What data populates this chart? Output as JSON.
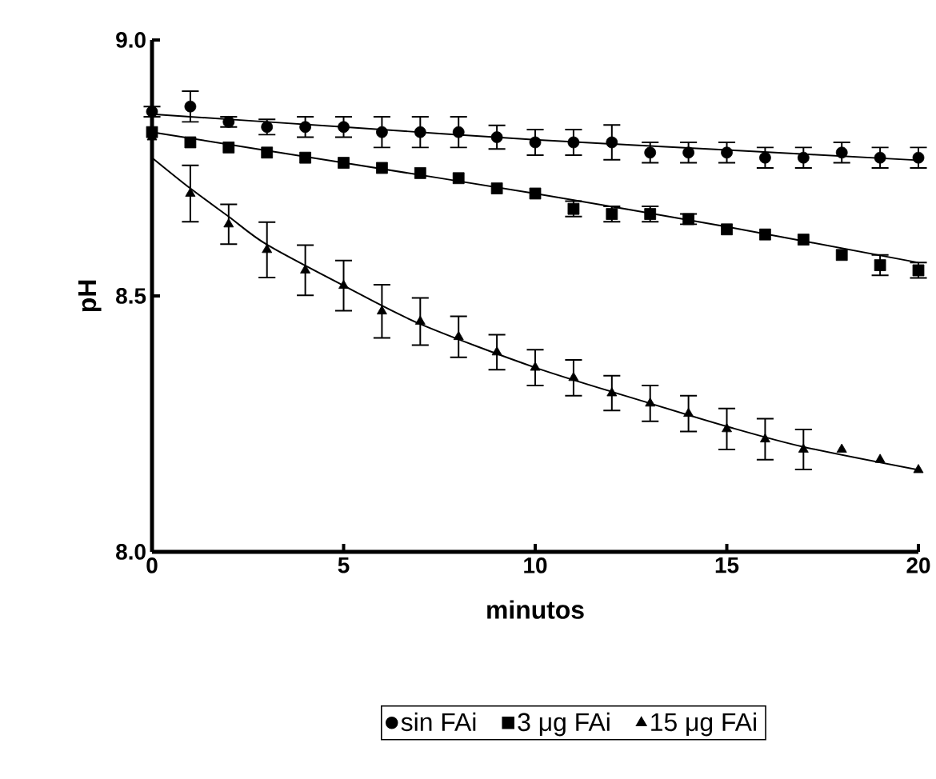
{
  "chart_data": {
    "type": "scatter",
    "xlabel": "minutos",
    "ylabel": "pH",
    "x": [
      0,
      1,
      2,
      3,
      4,
      5,
      6,
      7,
      8,
      9,
      10,
      11,
      12,
      13,
      14,
      15,
      16,
      17,
      18,
      19,
      20
    ],
    "xlim": [
      0,
      20
    ],
    "ylim": [
      8.0,
      9.0
    ],
    "xticks": [
      0,
      5,
      10,
      15,
      20
    ],
    "yticks": [
      {
        "value": 8.0,
        "label": "8.0"
      },
      {
        "value": 8.5,
        "label": "8.5"
      },
      {
        "value": 9.0,
        "label": "9.0"
      }
    ],
    "legend": "bottom",
    "grid": false,
    "series": [
      {
        "name": "sin FAi",
        "color": "#000000",
        "marker": "circle",
        "values": [
          8.86,
          8.87,
          8.84,
          8.83,
          8.83,
          8.83,
          8.82,
          8.82,
          8.82,
          8.81,
          8.8,
          8.8,
          8.8,
          8.78,
          8.78,
          8.78,
          8.77,
          8.77,
          8.78,
          8.77,
          8.77
        ],
        "errors": [
          0.01,
          0.03,
          0.01,
          0.015,
          0.02,
          0.02,
          0.03,
          0.03,
          0.03,
          0.023,
          0.025,
          0.025,
          0.034,
          0.02,
          0.02,
          0.02,
          0.02,
          0.02,
          0.02,
          0.02,
          0.02
        ]
      },
      {
        "name": "3 μg FAi",
        "color": "#000000",
        "marker": "square",
        "values": [
          8.82,
          8.8,
          8.79,
          8.78,
          8.77,
          8.76,
          8.75,
          8.74,
          8.73,
          8.71,
          8.7,
          8.67,
          8.66,
          8.66,
          8.65,
          8.63,
          8.62,
          8.61,
          8.58,
          8.56,
          8.55
        ],
        "errors": [
          null,
          null,
          null,
          null,
          null,
          null,
          null,
          null,
          null,
          null,
          null,
          0.015,
          0.015,
          0.015,
          0.01,
          null,
          null,
          null,
          null,
          0.02,
          0.015
        ]
      },
      {
        "name": "15 μg FAi",
        "color": "#000000",
        "marker": "triangle",
        "values": [
          8.81,
          8.7,
          8.64,
          8.59,
          8.55,
          8.52,
          8.47,
          8.45,
          8.42,
          8.39,
          8.36,
          8.34,
          8.31,
          8.29,
          8.27,
          8.24,
          8.22,
          8.2,
          8.2,
          8.18,
          8.16
        ],
        "errors": [
          null,
          0.055,
          0.039,
          0.054,
          0.049,
          0.049,
          0.052,
          0.046,
          0.04,
          0.034,
          0.035,
          0.035,
          0.034,
          0.035,
          0.035,
          0.04,
          0.04,
          0.039,
          null,
          null,
          null
        ]
      },
      {
        "type": "line",
        "color": "#000000",
        "x": [
          0,
          5,
          10,
          15,
          20
        ],
        "values": [
          8.855,
          8.83,
          8.805,
          8.785,
          8.765
        ]
      },
      {
        "type": "line",
        "color": "#000000",
        "x": [
          0,
          5,
          10,
          15,
          20
        ],
        "values": [
          8.82,
          8.76,
          8.7,
          8.635,
          8.565
        ]
      },
      {
        "type": "line",
        "color": "#000000",
        "x": [
          0,
          1,
          2,
          3,
          5,
          7,
          10,
          13,
          15,
          17,
          20
        ],
        "values": [
          8.77,
          8.71,
          8.655,
          8.6,
          8.52,
          8.445,
          8.36,
          8.29,
          8.245,
          8.205,
          8.16
        ]
      }
    ]
  }
}
